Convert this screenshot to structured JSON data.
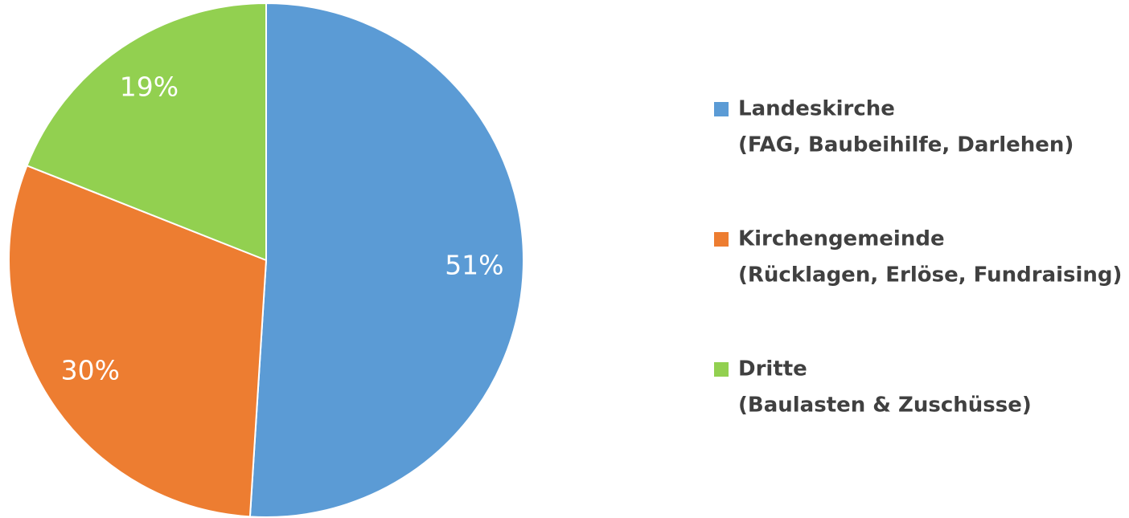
{
  "chart_data": {
    "type": "pie",
    "categories": [
      "Landeskirche",
      "Kirchengemeinde",
      "Dritte"
    ],
    "category_notes": [
      "(FAG, Baubeihilfe, Darlehen)",
      "(Rücklagen, Erlöse, Fundraising)",
      "(Baulasten & Zuschüsse)"
    ],
    "values": [
      51,
      30,
      19
    ],
    "value_labels": [
      "51%",
      "30%",
      "19%"
    ],
    "colors": [
      "#5b9bd5",
      "#ed7d31",
      "#92d050"
    ],
    "legend": "right"
  }
}
